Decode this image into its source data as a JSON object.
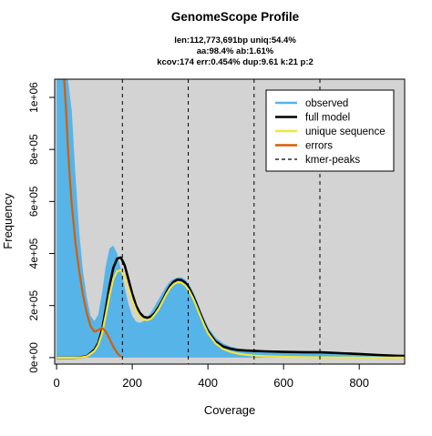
{
  "chart_data": {
    "type": "area",
    "title": "GenomeScope Profile",
    "subtitle_lines": [
      "len:112,773,691bp uniq:54.4%",
      "aa:98.4% ab:1.61%",
      "kcov:174 err:0.454%  dup:9.61  k:21 p:2"
    ],
    "xlabel": "Coverage",
    "ylabel": "Frequency",
    "xlim": [
      -5,
      920
    ],
    "ylim": [
      -25000,
      1070000
    ],
    "x_ticks": [
      0,
      200,
      400,
      600,
      800
    ],
    "x_tick_labels": [
      "0",
      "200",
      "400",
      "600",
      "800"
    ],
    "y_ticks": [
      0,
      200000,
      400000,
      600000,
      800000,
      1000000
    ],
    "y_tick_labels": [
      "0e+00",
      "2e+05",
      "4e+05",
      "6e+05",
      "8e+05",
      "1e+06"
    ],
    "kmer_peaks": [
      174,
      348,
      522,
      696
    ],
    "legend": {
      "position": "top-right",
      "entries": [
        {
          "label": "observed",
          "color": "#56B4E9",
          "style": "solid"
        },
        {
          "label": "full model",
          "color": "#000000",
          "style": "solid"
        },
        {
          "label": "unique sequence",
          "color": "#F0E442",
          "style": "solid"
        },
        {
          "label": "errors",
          "color": "#D55E00",
          "style": "solid"
        },
        {
          "label": "kmer-peaks",
          "color": "#000000",
          "style": "dashed"
        }
      ]
    },
    "series": [
      {
        "name": "observed",
        "color": "#56B4E9",
        "x": [
          0,
          10,
          20,
          30,
          40,
          50,
          60,
          70,
          80,
          90,
          100,
          110,
          120,
          130,
          140,
          150,
          160,
          170,
          180,
          190,
          200,
          210,
          220,
          230,
          240,
          250,
          260,
          270,
          280,
          290,
          300,
          310,
          320,
          330,
          340,
          350,
          360,
          370,
          380,
          390,
          400,
          420,
          440,
          460,
          480,
          500,
          520,
          540,
          560,
          580,
          600,
          650,
          700,
          750,
          800,
          850,
          900,
          920
        ],
        "y": [
          1070000,
          1070000,
          1070000,
          1070000,
          950000,
          700000,
          480000,
          330000,
          230000,
          160000,
          140000,
          165000,
          245000,
          350000,
          420000,
          430000,
          400000,
          340000,
          270000,
          205000,
          160000,
          138000,
          133000,
          140000,
          155000,
          175000,
          200000,
          225000,
          250000,
          275000,
          293000,
          303000,
          308000,
          308000,
          300000,
          283000,
          255000,
          222000,
          185000,
          150000,
          118000,
          78000,
          55000,
          42000,
          35000,
          30000,
          27000,
          24000,
          23000,
          22000,
          21000,
          19000,
          17000,
          14000,
          11000,
          9000,
          7000,
          6000
        ]
      },
      {
        "name": "full model",
        "color": "#000000",
        "x": [
          0,
          20,
          40,
          60,
          80,
          100,
          110,
          120,
          130,
          140,
          150,
          160,
          170,
          180,
          190,
          200,
          210,
          220,
          230,
          240,
          250,
          260,
          270,
          280,
          290,
          300,
          310,
          320,
          330,
          340,
          350,
          360,
          370,
          380,
          390,
          400,
          420,
          440,
          460,
          480,
          500,
          520,
          550,
          600,
          650,
          700,
          750,
          800,
          850,
          900,
          920
        ],
        "y": [
          0,
          0,
          0,
          400,
          5000,
          30000,
          55000,
          105000,
          185000,
          275000,
          345000,
          380000,
          385000,
          355000,
          300000,
          245000,
          200000,
          172000,
          157000,
          153000,
          158000,
          172000,
          195000,
          220000,
          250000,
          275000,
          292000,
          300000,
          298000,
          288000,
          268000,
          240000,
          205000,
          168000,
          133000,
          102000,
          62000,
          43000,
          34000,
          29000,
          27000,
          26000,
          24000,
          22000,
          21000,
          20000,
          17000,
          14000,
          10000,
          7000,
          6000
        ]
      },
      {
        "name": "unique sequence",
        "color": "#F0E442",
        "x": [
          0,
          40,
          60,
          80,
          100,
          110,
          120,
          130,
          140,
          150,
          160,
          170,
          180,
          190,
          200,
          210,
          220,
          230,
          240,
          250,
          260,
          270,
          280,
          290,
          300,
          310,
          320,
          330,
          340,
          350,
          360,
          370,
          380,
          390,
          400,
          420,
          440,
          460,
          480,
          500,
          520,
          550,
          600,
          650,
          700,
          750,
          800,
          850,
          900,
          920
        ],
        "y": [
          0,
          0,
          300,
          4000,
          25000,
          48000,
          92000,
          162000,
          240000,
          302000,
          332000,
          336000,
          312000,
          268000,
          220000,
          182000,
          158000,
          146000,
          144000,
          150000,
          166000,
          188000,
          215000,
          243000,
          267000,
          283000,
          290000,
          288000,
          278000,
          258000,
          230000,
          196000,
          160000,
          125000,
          95000,
          55000,
          33000,
          22000,
          15000,
          11000,
          8000,
          5000,
          3000,
          2000,
          1000,
          600,
          300,
          100,
          0,
          0
        ]
      },
      {
        "name": "errors",
        "color": "#D55E00",
        "x": [
          20,
          25,
          30,
          35,
          40,
          50,
          60,
          70,
          80,
          90,
          100,
          110,
          120,
          130,
          140,
          150,
          160,
          170
        ],
        "y": [
          1070000,
          950000,
          810000,
          690000,
          590000,
          440000,
          330000,
          240000,
          170000,
          120000,
          100000,
          105000,
          115000,
          100000,
          72000,
          42000,
          18000,
          3000
        ]
      }
    ]
  }
}
